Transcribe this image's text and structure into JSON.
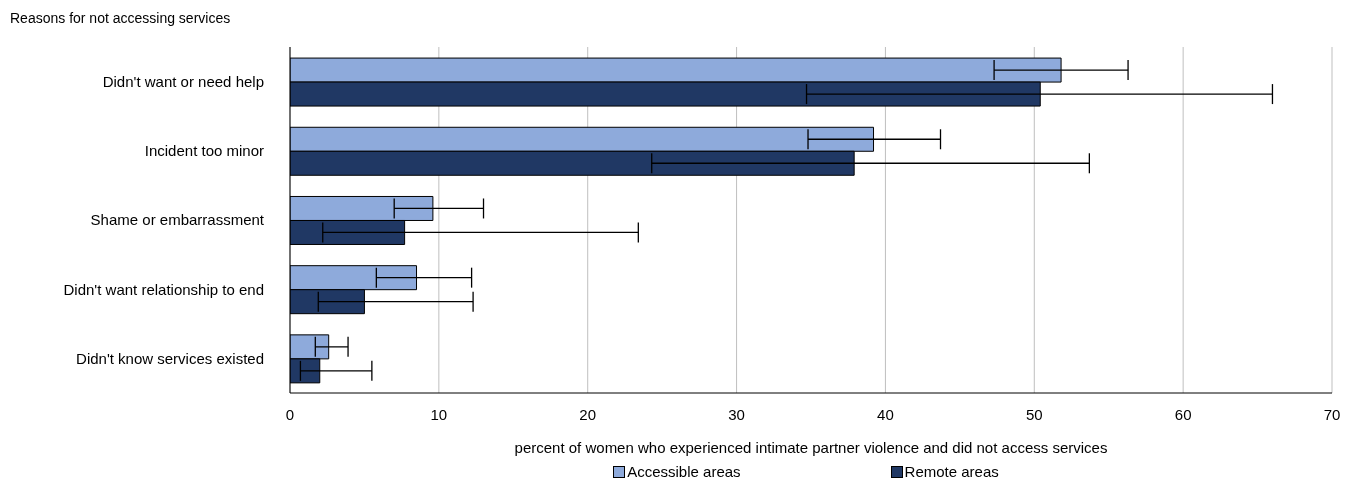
{
  "chart_data": {
    "type": "bar",
    "orientation": "horizontal",
    "title": "Reasons for not accessing services",
    "xlabel": "percent of women who experienced intimate partner violence and did not access services",
    "categories": [
      "Didn't want or need help",
      "Incident too minor",
      "Shame or embarrassment",
      "Didn't want relationship to end",
      "Didn't know services existed"
    ],
    "series": [
      {
        "name": "Accessible areas",
        "color": "#8eaadb",
        "values": [
          51.8,
          39.2,
          9.6,
          8.5,
          2.6
        ],
        "errors": [
          [
            47.3,
            56.3
          ],
          [
            34.8,
            43.7
          ],
          [
            7.0,
            13.0
          ],
          [
            5.8,
            12.2
          ],
          [
            1.7,
            3.9
          ]
        ]
      },
      {
        "name": "Remote areas",
        "color": "#203864",
        "values": [
          50.4,
          37.9,
          7.7,
          5.0,
          2.0
        ],
        "errors": [
          [
            34.7,
            66.0
          ],
          [
            24.3,
            53.7
          ],
          [
            2.2,
            23.4
          ],
          [
            1.9,
            12.3
          ],
          [
            0.7,
            5.5
          ]
        ]
      }
    ],
    "xlim": [
      0,
      70
    ],
    "xticks": [
      0,
      10,
      20,
      30,
      40,
      50,
      60,
      70
    ],
    "grid": "x",
    "legend": "bottom"
  }
}
